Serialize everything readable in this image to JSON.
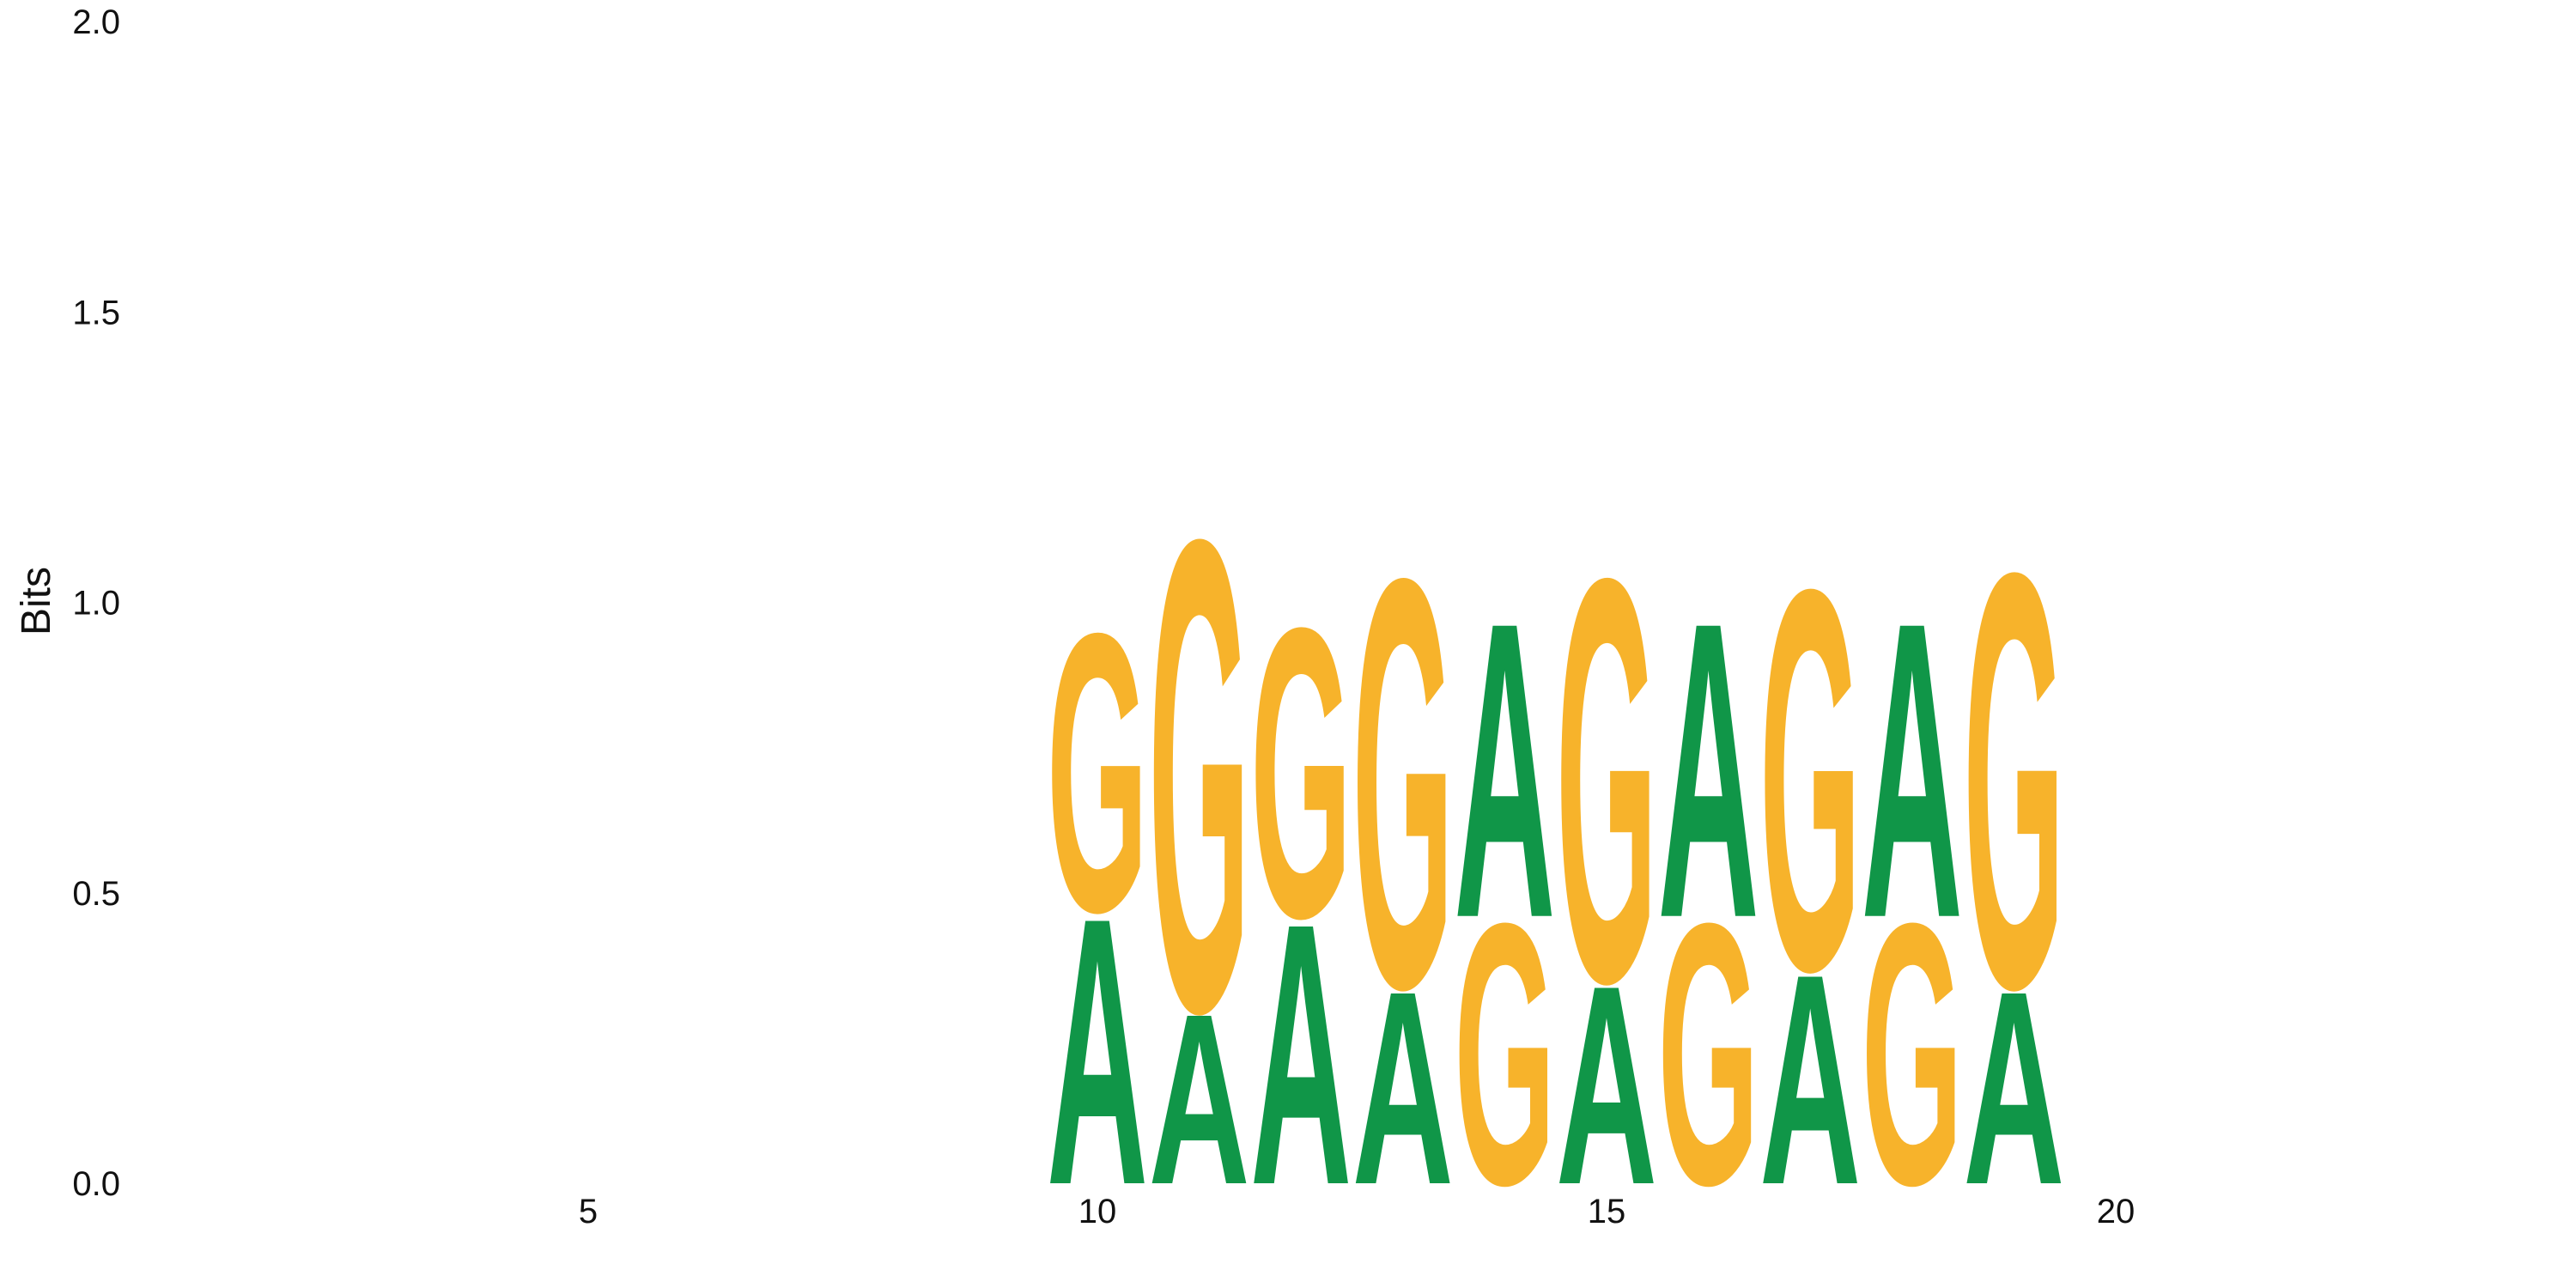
{
  "chart_data": {
    "type": "sequence-logo",
    "title": "",
    "xlabel": "",
    "ylabel": "Bits",
    "ylim": [
      0,
      2.0
    ],
    "xlim": [
      0.5,
      25.5
    ],
    "y_ticks": [
      "0.0",
      "0.5",
      "1.0",
      "1.5",
      "2.0"
    ],
    "x_ticks": [
      5,
      10,
      15,
      20
    ],
    "grid": false,
    "colors": {
      "A": "#109648",
      "G": "#f7b32b"
    },
    "positions": [
      {
        "pos": 10,
        "stack": [
          {
            "letter": "A",
            "height": 0.47
          },
          {
            "letter": "G",
            "height": 0.49
          }
        ]
      },
      {
        "pos": 11,
        "stack": [
          {
            "letter": "A",
            "height": 0.3
          },
          {
            "letter": "G",
            "height": 0.83
          }
        ]
      },
      {
        "pos": 12,
        "stack": [
          {
            "letter": "A",
            "height": 0.46
          },
          {
            "letter": "G",
            "height": 0.51
          }
        ]
      },
      {
        "pos": 13,
        "stack": [
          {
            "letter": "A",
            "height": 0.34
          },
          {
            "letter": "G",
            "height": 0.72
          }
        ]
      },
      {
        "pos": 14,
        "stack": [
          {
            "letter": "G",
            "height": 0.46
          },
          {
            "letter": "A",
            "height": 0.52
          }
        ]
      },
      {
        "pos": 15,
        "stack": [
          {
            "letter": "A",
            "height": 0.35
          },
          {
            "letter": "G",
            "height": 0.71
          }
        ]
      },
      {
        "pos": 16,
        "stack": [
          {
            "letter": "G",
            "height": 0.46
          },
          {
            "letter": "A",
            "height": 0.52
          }
        ]
      },
      {
        "pos": 17,
        "stack": [
          {
            "letter": "A",
            "height": 0.37
          },
          {
            "letter": "G",
            "height": 0.67
          }
        ]
      },
      {
        "pos": 18,
        "stack": [
          {
            "letter": "G",
            "height": 0.46
          },
          {
            "letter": "A",
            "height": 0.52
          }
        ]
      },
      {
        "pos": 19,
        "stack": [
          {
            "letter": "A",
            "height": 0.34
          },
          {
            "letter": "G",
            "height": 0.73
          }
        ]
      }
    ]
  }
}
